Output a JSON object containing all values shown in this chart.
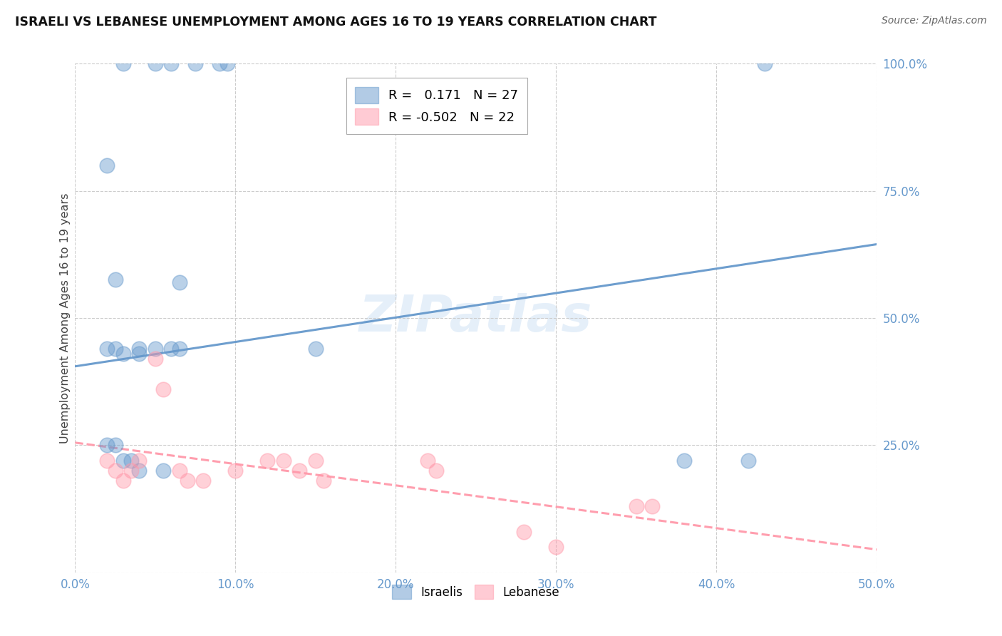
{
  "title": "ISRAELI VS LEBANESE UNEMPLOYMENT AMONG AGES 16 TO 19 YEARS CORRELATION CHART",
  "source": "Source: ZipAtlas.com",
  "ylabel": "Unemployment Among Ages 16 to 19 years",
  "watermark": "ZIPatlas",
  "israeli_R": 0.171,
  "israeli_N": 27,
  "lebanese_R": -0.502,
  "lebanese_N": 22,
  "xlim": [
    0.0,
    0.5
  ],
  "ylim": [
    0.0,
    1.0
  ],
  "xticks": [
    0.0,
    0.1,
    0.2,
    0.3,
    0.4,
    0.5
  ],
  "yticks": [
    0.0,
    0.25,
    0.5,
    0.75,
    1.0
  ],
  "xtick_labels": [
    "0.0%",
    "10.0%",
    "20.0%",
    "30.0%",
    "40.0%",
    "50.0%"
  ],
  "ytick_labels": [
    "",
    "25.0%",
    "50.0%",
    "75.0%",
    "100.0%"
  ],
  "israeli_color": "#6699cc",
  "lebanese_color": "#ff99aa",
  "bg_color": "#ffffff",
  "grid_color": "#cccccc",
  "israeli_x": [
    0.03,
    0.05,
    0.06,
    0.075,
    0.09,
    0.095,
    0.43,
    0.02,
    0.025,
    0.03,
    0.04,
    0.02,
    0.025,
    0.04,
    0.05,
    0.06,
    0.065,
    0.02,
    0.025,
    0.03,
    0.035,
    0.04,
    0.055,
    0.38,
    0.42,
    0.065,
    0.15
  ],
  "israeli_y": [
    1.0,
    1.0,
    1.0,
    1.0,
    1.0,
    1.0,
    1.0,
    0.8,
    0.575,
    0.43,
    0.43,
    0.44,
    0.44,
    0.44,
    0.44,
    0.44,
    0.44,
    0.25,
    0.25,
    0.22,
    0.22,
    0.2,
    0.2,
    0.22,
    0.22,
    0.57,
    0.44
  ],
  "lebanese_x": [
    0.02,
    0.025,
    0.03,
    0.035,
    0.04,
    0.05,
    0.055,
    0.065,
    0.07,
    0.08,
    0.1,
    0.12,
    0.13,
    0.14,
    0.15,
    0.155,
    0.22,
    0.225,
    0.28,
    0.3,
    0.35,
    0.36
  ],
  "lebanese_y": [
    0.22,
    0.2,
    0.18,
    0.2,
    0.22,
    0.42,
    0.36,
    0.2,
    0.18,
    0.18,
    0.2,
    0.22,
    0.22,
    0.2,
    0.22,
    0.18,
    0.22,
    0.2,
    0.08,
    0.05,
    0.13,
    0.13
  ],
  "isr_line_x": [
    0.0,
    0.5
  ],
  "isr_line_y": [
    0.405,
    0.645
  ],
  "leb_line_x": [
    0.0,
    0.5
  ],
  "leb_line_y": [
    0.255,
    0.045
  ]
}
